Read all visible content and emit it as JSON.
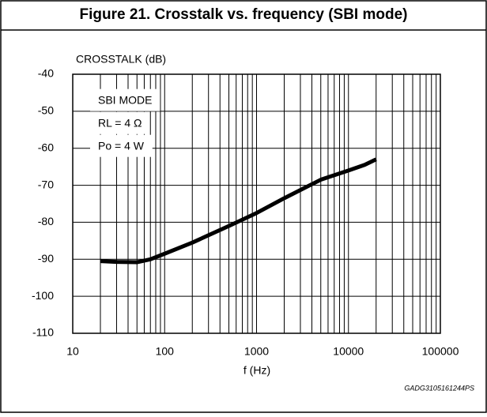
{
  "chart_data": {
    "type": "line",
    "title": "Figure 21. Crosstalk vs. frequency (SBI mode)",
    "y_label": "CROSSTALK (dB)",
    "x_label": "f (Hz)",
    "annotations": [
      "SBI MODE",
      "RL = 4 Ω",
      "Po = 4 W"
    ],
    "figure_code": "GADG3105161244PS",
    "x": [
      20,
      30,
      50,
      70,
      100,
      200,
      500,
      1000,
      2000,
      5000,
      10000,
      15000,
      20000
    ],
    "series": [
      {
        "name": "Crosstalk",
        "color": "#000000",
        "values": [
          -90.5,
          -90.7,
          -90.8,
          -90.0,
          -88.5,
          -85.5,
          -81,
          -77.5,
          -73.5,
          -68.5,
          -66,
          -64.5,
          -63
        ]
      }
    ],
    "xlim": [
      10,
      100000
    ],
    "xticks": [
      10,
      100,
      1000,
      10000,
      100000
    ],
    "x_log": true,
    "x_minor_grid": true,
    "ylim": [
      -110,
      -40
    ],
    "yticks": [
      -40,
      -50,
      -60,
      -70,
      -80,
      -90,
      -100,
      -110
    ],
    "grid": true
  }
}
